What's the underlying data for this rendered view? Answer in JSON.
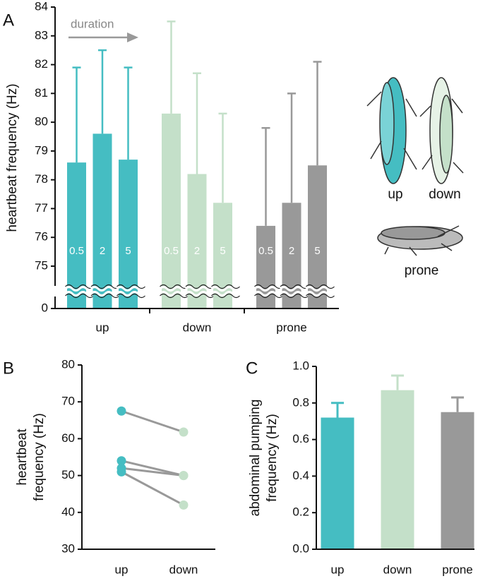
{
  "chart_data": [
    {
      "type": "grouped_bar",
      "panel": "A",
      "ylabel": "heartbeat frequency (Hz)",
      "annotation": "duration",
      "categories": [
        "up",
        "down",
        "prone"
      ],
      "colors": [
        "#45bdc2",
        "#c4e0c9",
        "#999999"
      ],
      "series": [
        {
          "name": "0.5",
          "values": [
            78.6,
            80.3,
            76.4
          ],
          "errors": [
            3.3,
            3.2,
            3.4
          ]
        },
        {
          "name": "2",
          "values": [
            79.6,
            78.2,
            77.2
          ],
          "errors": [
            2.9,
            3.5,
            3.8
          ]
        },
        {
          "name": "5",
          "values": [
            78.7,
            77.2,
            78.5
          ],
          "errors": [
            3.2,
            3.1,
            3.6
          ]
        }
      ],
      "ylim": [
        0,
        84
      ],
      "yticks": [
        0,
        75,
        76,
        77,
        78,
        79,
        80,
        81,
        82,
        83,
        84
      ],
      "broken_axis": true,
      "inset_labels": [
        "up",
        "down",
        "prone"
      ]
    },
    {
      "type": "line",
      "panel": "B",
      "ylabel": [
        "heartbeat",
        "frequency (Hz)"
      ],
      "categories": [
        "up",
        "down"
      ],
      "colors": [
        "#45bdc2",
        "#c4e0c9"
      ],
      "line_color": "#999999",
      "series": [
        {
          "values": [
            67.5,
            61.8
          ]
        },
        {
          "values": [
            54,
            50
          ]
        },
        {
          "values": [
            52,
            50
          ]
        },
        {
          "values": [
            51,
            42
          ]
        }
      ],
      "ylim": [
        30,
        80
      ],
      "yticks": [
        30,
        40,
        50,
        60,
        70,
        80
      ]
    },
    {
      "type": "bar",
      "panel": "C",
      "ylabel": [
        "abdominal pumping",
        "frequency (Hz)"
      ],
      "categories": [
        "up",
        "down",
        "prone"
      ],
      "colors": [
        "#45bdc2",
        "#c4e0c9",
        "#999999"
      ],
      "values": [
        0.72,
        0.87,
        0.75
      ],
      "errors": [
        0.08,
        0.08,
        0.08
      ],
      "ylim": [
        0,
        1
      ],
      "yticks": [
        {
          "value": 0,
          "label": "0.0"
        },
        0.2,
        0.4,
        0.6,
        0.8,
        {
          "value": 1,
          "label": "1.0"
        }
      ]
    }
  ]
}
